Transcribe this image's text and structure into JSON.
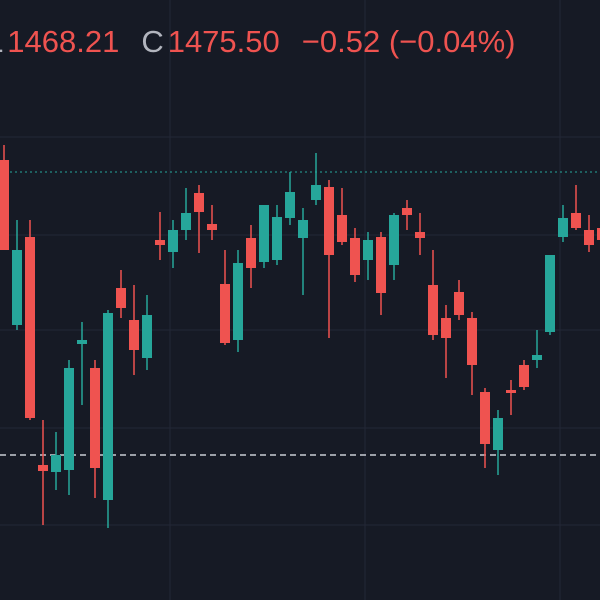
{
  "chart_data": {
    "type": "candlestick",
    "header": [
      {
        "label": "L",
        "value": "1468.21"
      },
      {
        "label": "C",
        "value": "1475.50"
      },
      {
        "label": "",
        "value": "−0.52 (−0.04%)"
      }
    ],
    "label_color": "#b2b5be",
    "value_color": "#ef5350",
    "up_color": "#26a69a",
    "down_color": "#ef5350",
    "ylim": [
      0,
      600
    ],
    "grid": [
      463,
      365,
      270,
      172,
      75
    ],
    "price_lines": [
      {
        "value": 428,
        "color": "#26a69a",
        "style": "dotted"
      },
      {
        "value": 145,
        "color": "#c9ccd4",
        "style": "dashed"
      }
    ],
    "open": [
      440,
      275,
      363,
      135,
      128,
      130,
      256,
      232,
      100,
      312,
      280,
      242,
      360,
      348,
      370,
      407,
      376,
      316,
      260,
      362,
      338,
      340,
      382,
      362,
      400,
      413,
      385,
      362,
      340,
      363,
      335,
      392,
      368,
      315,
      282,
      308,
      282,
      208,
      150,
      210,
      235,
      240,
      268,
      363,
      387,
      370,
      372
    ],
    "high": [
      455,
      380,
      380,
      180,
      168,
      240,
      278,
      240,
      290,
      330,
      315,
      305,
      388,
      380,
      412,
      415,
      395,
      350,
      350,
      375,
      395,
      395,
      428,
      392,
      447,
      420,
      412,
      372,
      368,
      368,
      387,
      400,
      387,
      350,
      295,
      320,
      288,
      212,
      190,
      220,
      240,
      270,
      345,
      395,
      415,
      385,
      380
    ],
    "low": [
      350,
      270,
      180,
      75,
      110,
      105,
      195,
      102,
      72,
      282,
      225,
      230,
      340,
      332,
      360,
      347,
      360,
      255,
      248,
      312,
      332,
      335,
      375,
      305,
      395,
      262,
      355,
      318,
      320,
      285,
      320,
      370,
      345,
      260,
      222,
      280,
      205,
      132,
      125,
      185,
      210,
      232,
      265,
      358,
      370,
      348,
      350
    ],
    "close": [
      350,
      350,
      182,
      129,
      145,
      232,
      260,
      132,
      287,
      292,
      250,
      285,
      355,
      370,
      387,
      388,
      370,
      257,
      337,
      332,
      395,
      383,
      408,
      380,
      415,
      345,
      358,
      325,
      360,
      307,
      385,
      385,
      362,
      265,
      262,
      285,
      235,
      156,
      182,
      207,
      213,
      245,
      345,
      382,
      372,
      355,
      360
    ]
  }
}
